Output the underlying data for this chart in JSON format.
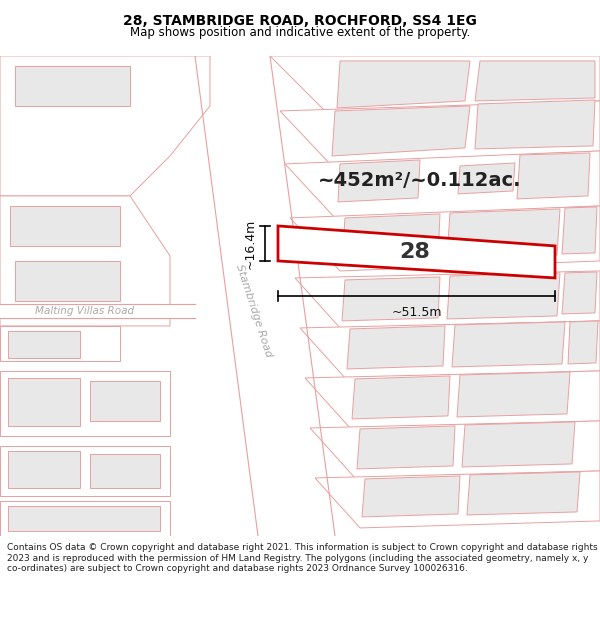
{
  "title": "28, STAMBRIDGE ROAD, ROCHFORD, SS4 1EG",
  "subtitle": "Map shows position and indicative extent of the property.",
  "footer": "Contains OS data © Crown copyright and database right 2021. This information is subject to Crown copyright and database rights 2023 and is reproduced with the permission of HM Land Registry. The polygons (including the associated geometry, namely x, y co-ordinates) are subject to Crown copyright and database rights 2023 Ordnance Survey 100026316.",
  "area_text": "~452m²/~0.112ac.",
  "property_number": "28",
  "dim_width": "~51.5m",
  "dim_height": "~16.4m",
  "bg_color": "#ffffff",
  "map_bg": "#ffffff",
  "building_fill_color": "#e8e8e8",
  "building_outline_color": "#e8a0a0",
  "property_outline_color": "#cc0000",
  "property_fill_color": "#ffffff",
  "road_fill_color": "#ffffff",
  "road_edge_color": "#e8a0a0",
  "street_label": "Stambridge Road",
  "street_label2": "Malting Villas Road",
  "figsize": [
    6.0,
    6.25
  ],
  "dpi": 100
}
